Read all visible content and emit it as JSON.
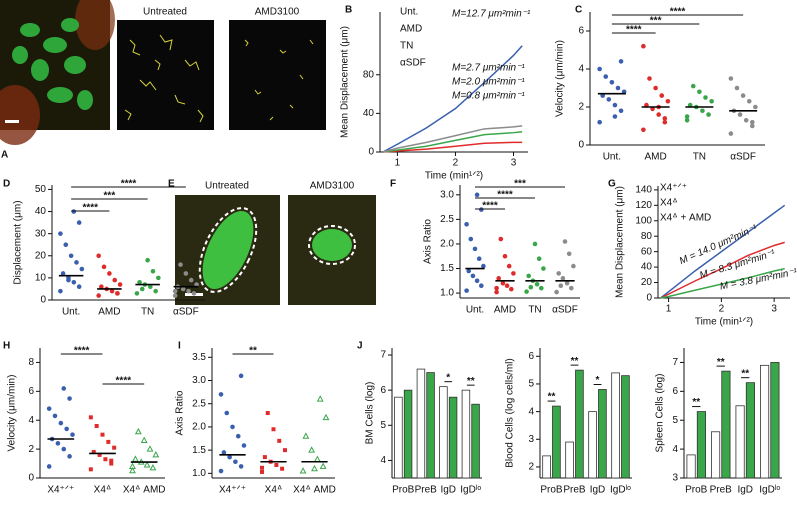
{
  "chart_data": [
    {
      "type": "image",
      "panel": "A",
      "titles": [
        null,
        "Untreated",
        "AMD3100"
      ]
    },
    {
      "type": "line",
      "panel": "B",
      "ylabel": "Mean Displacement (μm)",
      "xlabel": "Time (min¹ᐟ²)",
      "x": [
        0.75,
        1,
        1.5,
        2,
        2.5,
        3,
        3.15
      ],
      "xlim": [
        0.7,
        3.25
      ],
      "xticks": [
        1,
        2,
        3
      ],
      "ylim": [
        0,
        145
      ],
      "yticks": [
        0,
        40,
        80
      ],
      "series": [
        {
          "name": "Unt.",
          "color": "#3a5fae",
          "values": [
            0,
            8,
            25,
            45,
            72,
            100,
            110
          ]
        },
        {
          "name": "AMD",
          "color": "#e02b2b",
          "values": [
            0,
            1,
            3,
            6,
            9,
            10,
            10
          ]
        },
        {
          "name": "TN",
          "color": "#3aa64a",
          "values": [
            0,
            2,
            6,
            12,
            18,
            20,
            21
          ]
        },
        {
          "name": "αSDF",
          "color": "#8c8c8c",
          "values": [
            0,
            4,
            10,
            17,
            24,
            26,
            27
          ]
        }
      ],
      "annotations": [
        {
          "text": "M=12.7 μm²min⁻¹",
          "color": "#3a5fae"
        },
        {
          "text": "M=2.7 μm²min⁻¹",
          "color": "#8c8c8c"
        },
        {
          "text": "M=2.0 μm²min⁻¹",
          "color": "#3aa64a"
        },
        {
          "text": "M=0.8 μm²min⁻¹",
          "color": "#e02b2b"
        }
      ]
    },
    {
      "type": "strip",
      "panel": "C",
      "ylabel": "Velocity (μm/min)",
      "ylim": [
        0,
        7
      ],
      "yticks": [
        0,
        2,
        4,
        6
      ],
      "categories": [
        "Unt.",
        "AMD",
        "TN",
        "αSDF"
      ],
      "groups": [
        {
          "color": "#3a5fae",
          "marker": "circle",
          "mean": 2.7,
          "values": [
            1.2,
            1.8,
            2.1,
            2.4,
            2.6,
            2.8,
            3.0,
            3.3,
            3.6,
            4.0,
            4.4,
            1.5
          ]
        },
        {
          "color": "#e02b2b",
          "marker": "circle",
          "mean": 2.0,
          "values": [
            0.8,
            1.2,
            1.6,
            1.9,
            2.1,
            2.3,
            2.6,
            3.0,
            3.5,
            5.2,
            1.4,
            2.0
          ]
        },
        {
          "color": "#3aa64a",
          "marker": "circle",
          "mean": 2.0,
          "values": [
            1.3,
            1.6,
            1.8,
            2.0,
            2.1,
            2.3,
            2.5,
            2.8,
            3.1,
            1.5
          ]
        },
        {
          "color": "#8c8c8c",
          "marker": "circle",
          "mean": 1.8,
          "values": [
            0.6,
            1.0,
            1.3,
            1.6,
            1.8,
            2.0,
            2.3,
            2.6,
            3.0,
            3.5,
            1.2
          ]
        }
      ],
      "significance": [
        {
          "between": [
            "Unt.",
            "AMD"
          ],
          "label": "****"
        },
        {
          "between": [
            "Unt.",
            "TN"
          ],
          "label": "***"
        },
        {
          "between": [
            "Unt.",
            "αSDF"
          ],
          "label": "****"
        }
      ]
    },
    {
      "type": "strip",
      "panel": "D",
      "ylabel": "Displacement (μm)",
      "ylim": [
        0,
        52
      ],
      "yticks": [
        0,
        10,
        20,
        30,
        40,
        50
      ],
      "categories": [
        "Unt.",
        "AMD",
        "TN",
        "αSDF"
      ],
      "groups": [
        {
          "color": "#3a5fae",
          "marker": "circle",
          "mean": 11,
          "values": [
            4,
            6,
            8,
            10,
            12,
            14,
            17,
            20,
            25,
            30,
            35,
            40,
            9
          ]
        },
        {
          "color": "#e02b2b",
          "marker": "circle",
          "mean": 5,
          "values": [
            2,
            3,
            4,
            5,
            6,
            7,
            9,
            12,
            15,
            20,
            3
          ]
        },
        {
          "color": "#3aa64a",
          "marker": "circle",
          "mean": 7,
          "values": [
            3,
            4,
            6,
            7,
            8,
            10,
            13,
            18,
            5
          ]
        },
        {
          "color": "#8c8c8c",
          "marker": "circle",
          "mean": 6,
          "values": [
            2,
            3,
            4,
            5,
            6,
            7,
            9,
            12,
            16,
            4
          ]
        }
      ],
      "significance": [
        {
          "between": [
            "Unt.",
            "AMD"
          ],
          "label": "****"
        },
        {
          "between": [
            "Unt.",
            "TN"
          ],
          "label": "***"
        },
        {
          "between": [
            "Unt.",
            "αSDF"
          ],
          "label": "****"
        }
      ]
    },
    {
      "type": "image",
      "panel": "E",
      "titles": [
        "Untreated",
        "AMD3100"
      ]
    },
    {
      "type": "strip",
      "panel": "F",
      "ylabel": "Axis Ratio",
      "ylim": [
        0.9,
        3.2
      ],
      "yticks": [
        {
          "value": 1,
          "label": "1.0"
        },
        1.5,
        {
          "value": 2,
          "label": "2.0"
        },
        2.5,
        {
          "value": 3,
          "label": "3.0"
        }
      ],
      "categories": [
        "Unt.",
        "AMD",
        "TN",
        "αSDF"
      ],
      "groups": [
        {
          "color": "#3a5fae",
          "marker": "circle",
          "mean": 1.5,
          "values": [
            1.05,
            1.15,
            1.25,
            1.35,
            1.45,
            1.55,
            1.7,
            1.9,
            2.1,
            2.4,
            2.7,
            3.0
          ]
        },
        {
          "color": "#e02b2b",
          "marker": "circle",
          "mean": 1.25,
          "values": [
            1.02,
            1.08,
            1.15,
            1.2,
            1.3,
            1.4,
            1.55,
            1.75,
            2.1,
            1.1
          ]
        },
        {
          "color": "#3aa64a",
          "marker": "circle",
          "mean": 1.25,
          "values": [
            1.03,
            1.1,
            1.18,
            1.25,
            1.35,
            1.5,
            1.7,
            2.0,
            1.12
          ]
        },
        {
          "color": "#8c8c8c",
          "marker": "circle",
          "mean": 1.25,
          "values": [
            1.02,
            1.1,
            1.2,
            1.3,
            1.4,
            1.55,
            1.8,
            2.05,
            1.15
          ]
        }
      ],
      "significance": [
        {
          "between": [
            "Unt.",
            "AMD"
          ],
          "label": "****"
        },
        {
          "between": [
            "Unt.",
            "TN"
          ],
          "label": "****"
        },
        {
          "between": [
            "Unt.",
            "αSDF"
          ],
          "label": "***"
        }
      ]
    },
    {
      "type": "line",
      "panel": "G",
      "ylabel": "Mean Displacement (μm)",
      "xlabel": "Time (min¹ᐟ²)",
      "x": [
        0.85,
        1,
        1.5,
        2,
        2.5,
        3,
        3.2
      ],
      "xlim": [
        0.8,
        3.3
      ],
      "xticks": [
        1,
        2,
        3
      ],
      "ylim": [
        0,
        145
      ],
      "yticks": [
        0,
        20,
        40,
        60,
        80,
        100,
        120,
        140
      ],
      "series": [
        {
          "name": "X4⁺ᐟ⁺",
          "color": "#3a5fae",
          "values": [
            0,
            8,
            35,
            60,
            85,
            110,
            120
          ]
        },
        {
          "name": "X4ᐞ",
          "color": "#e02b2b",
          "values": [
            0,
            5,
            22,
            38,
            55,
            68,
            72
          ]
        },
        {
          "name": "X4ᐞ + AMD",
          "color": "#3aa64a",
          "values": [
            0,
            2,
            10,
            18,
            26,
            35,
            38
          ]
        }
      ],
      "annotations": [
        {
          "text": "M = 14.0 μm²min⁻¹",
          "color": "#3a5fae"
        },
        {
          "text": "M = 8.3 μm²min⁻¹",
          "color": "#e02b2b"
        },
        {
          "text": "M = 3.8 μm²min⁻¹",
          "color": "#3aa64a"
        }
      ]
    },
    {
      "type": "strip",
      "panel": "H",
      "ylabel": "Velocity (μm/min)",
      "ylim": [
        0,
        9
      ],
      "yticks": [
        0,
        2,
        4,
        6,
        8
      ],
      "categories": [
        "X4⁺ᐟ⁺",
        "X4ᐞ",
        "X4ᐞ AMD"
      ],
      "groups": [
        {
          "color": "#3a5fae",
          "marker": "circle",
          "mean": 2.7,
          "values": [
            0.8,
            1.5,
            2.0,
            2.4,
            2.7,
            3.0,
            3.4,
            3.8,
            4.3,
            4.8,
            5.5,
            6.2
          ]
        },
        {
          "color": "#e02b2b",
          "marker": "square",
          "mean": 1.7,
          "values": [
            0.6,
            1.0,
            1.3,
            1.6,
            1.8,
            2.1,
            2.5,
            3.0,
            3.6,
            4.2,
            1.2
          ]
        },
        {
          "color": "#3aa64a",
          "marker": "triangle",
          "mean": 1.1,
          "values": [
            0.5,
            0.7,
            0.9,
            1.1,
            1.3,
            1.6,
            2.0,
            2.6,
            3.2,
            0.8
          ]
        }
      ],
      "significance": [
        {
          "between": [
            "X4⁺ᐟ⁺",
            "X4ᐞ"
          ],
          "label": "****"
        },
        {
          "between": [
            "X4ᐞ",
            "X4ᐞ AMD"
          ],
          "label": "****"
        }
      ]
    },
    {
      "type": "strip",
      "panel": "I",
      "ylabel": "Axis Ratio",
      "ylim": [
        0.9,
        3.7
      ],
      "yticks": [
        {
          "value": 1,
          "label": "1.0"
        },
        1.5,
        {
          "value": 2,
          "label": "2.0"
        },
        2.5,
        {
          "value": 3,
          "label": "3.0"
        },
        3.5
      ],
      "categories": [
        "X4⁺ᐟ⁺",
        "X4ᐞ",
        "X4ᐞ AMD"
      ],
      "groups": [
        {
          "color": "#3a5fae",
          "marker": "circle",
          "mean": 1.4,
          "values": [
            1.05,
            1.15,
            1.25,
            1.35,
            1.45,
            1.6,
            1.8,
            2.0,
            2.3,
            2.7,
            3.1
          ]
        },
        {
          "color": "#e02b2b",
          "marker": "square",
          "mean": 1.25,
          "values": [
            1.03,
            1.1,
            1.18,
            1.25,
            1.35,
            1.5,
            1.7,
            1.95,
            2.3,
            1.12
          ]
        },
        {
          "color": "#3aa64a",
          "marker": "triangle",
          "mean": 1.25,
          "values": [
            1.05,
            1.15,
            1.3,
            1.5,
            1.8,
            2.2,
            2.6,
            1.1
          ]
        }
      ],
      "significance": [
        {
          "between": [
            "X4⁺ᐟ⁺",
            "X4ᐞ"
          ],
          "label": "**"
        }
      ]
    },
    {
      "type": "bar",
      "panel": "J",
      "ylabel": "BM Cells (log)",
      "ylim": [
        3.5,
        7.2
      ],
      "yticks": [
        4,
        5,
        6,
        7
      ],
      "categories": [
        "ProB",
        "PreB",
        "IgD",
        "IgDˡᵒ"
      ],
      "series": [
        {
          "color": "#ffffff",
          "values": [
            5.8,
            6.6,
            6.1,
            6.0
          ]
        },
        {
          "color": "#3aa64a",
          "values": [
            6.0,
            6.5,
            5.8,
            5.6
          ]
        }
      ],
      "stars": [
        null,
        null,
        "*",
        "**"
      ]
    },
    {
      "type": "bar",
      "ylabel": "Blood Cells (log cells/ml)",
      "ylim": [
        1.6,
        6.3
      ],
      "yticks": [
        2,
        3,
        4,
        5,
        6
      ],
      "categories": [
        "ProB",
        "PreB",
        "IgD",
        "IgDˡᵒ"
      ],
      "series": [
        {
          "color": "#ffffff",
          "values": [
            2.4,
            2.9,
            4.0,
            5.4
          ]
        },
        {
          "color": "#3aa64a",
          "values": [
            4.2,
            5.5,
            4.8,
            5.3
          ]
        }
      ],
      "stars": [
        "**",
        "**",
        "*",
        null
      ]
    },
    {
      "type": "bar",
      "ylabel": "Spleen Cells (log)",
      "ylim": [
        3,
        7.5
      ],
      "yticks": [
        3,
        4,
        5,
        6,
        7
      ],
      "categories": [
        "ProB",
        "PreB",
        "IgD",
        "IgDˡᵒ"
      ],
      "series": [
        {
          "color": "#ffffff",
          "values": [
            3.8,
            4.6,
            5.5,
            6.9
          ]
        },
        {
          "color": "#3aa64a",
          "values": [
            5.3,
            6.7,
            6.3,
            7.0
          ]
        }
      ],
      "stars": [
        "**",
        "**",
        "**",
        null
      ]
    }
  ]
}
